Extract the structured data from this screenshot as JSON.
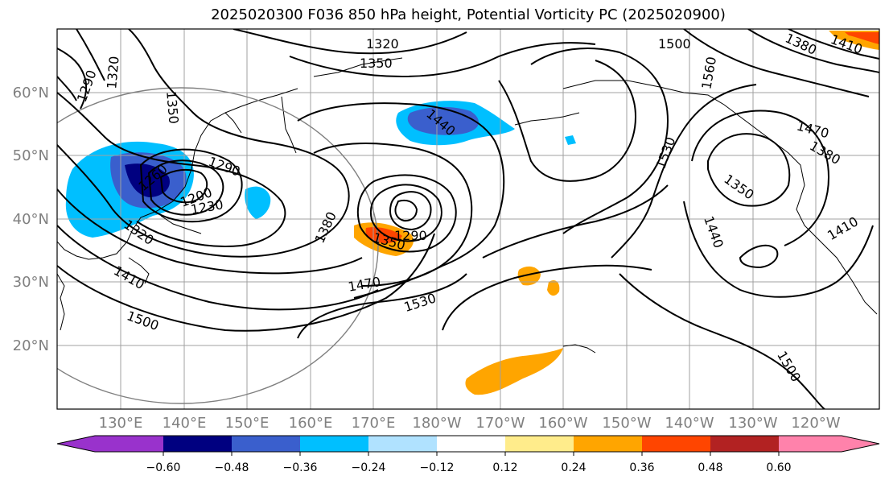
{
  "title": "2025020300 F036 850 hPa height, Potential Vorticity PC (2025020900)",
  "map": {
    "lat_labels": [
      "60°N",
      "50°N",
      "40°N",
      "30°N",
      "20°N"
    ],
    "lon_labels": [
      "130°E",
      "140°E",
      "150°E",
      "160°E",
      "170°E",
      "180°W",
      "170°W",
      "160°W",
      "150°W",
      "140°W",
      "130°W",
      "120°W"
    ],
    "contour_labels": [
      "1320",
      "1350",
      "1500",
      "1290",
      "1320",
      "1350",
      "1440",
      "1560",
      "1470",
      "1530",
      "1380",
      "1260",
      "1290",
      "1200",
      "1230",
      "1320",
      "1410",
      "1380",
      "1290",
      "1350",
      "1350",
      "1470",
      "1530",
      "1500",
      "1440",
      "1410",
      "1500",
      "1410",
      "1380"
    ],
    "colors": {
      "contour": "#000000",
      "grid": "#a0a0a0",
      "coast": "#000000",
      "circle": "#808080"
    }
  },
  "colorbar": {
    "ticks": [
      "−0.60",
      "−0.48",
      "−0.36",
      "−0.24",
      "−0.12",
      "0.12",
      "0.24",
      "0.36",
      "0.48",
      "0.60"
    ],
    "colors": [
      "#9932cc",
      "#000080",
      "#3a5fcd",
      "#00bfff",
      "#b0e2ff",
      "#ffffff",
      "#ffec8b",
      "#ffa500",
      "#ff4500",
      "#b22222",
      "#ff82ab"
    ]
  }
}
